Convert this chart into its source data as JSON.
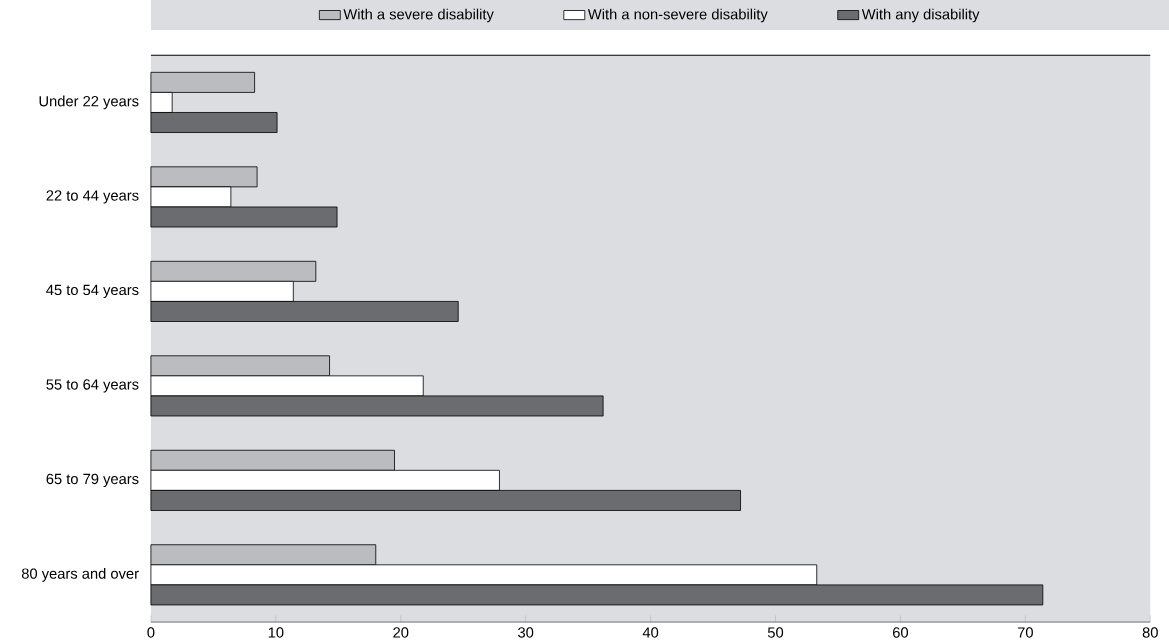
{
  "chart_data": {
    "type": "bar",
    "orientation": "horizontal",
    "categories": [
      "Under 22 years",
      "22 to 44 years",
      "45 to 54 years",
      "55 to 64 years",
      "65 to 79 years",
      "80 years and over"
    ],
    "series": [
      {
        "name": "With a severe disability",
        "color": "#bbbcc0",
        "values": [
          8.3,
          8.5,
          13.2,
          14.3,
          19.5,
          18.0
        ]
      },
      {
        "name": "With a non-severe disability",
        "color": "#ffffff",
        "values": [
          1.7,
          6.4,
          11.4,
          21.8,
          27.9,
          53.3
        ]
      },
      {
        "name": "With any disability",
        "color": "#6b6c70",
        "values": [
          10.1,
          14.9,
          24.6,
          36.2,
          47.2,
          71.4
        ]
      }
    ],
    "xlim": [
      0,
      80
    ],
    "xticks": [
      0,
      10,
      20,
      30,
      40,
      50,
      60,
      70,
      80
    ],
    "grid": false,
    "legend": "top"
  }
}
